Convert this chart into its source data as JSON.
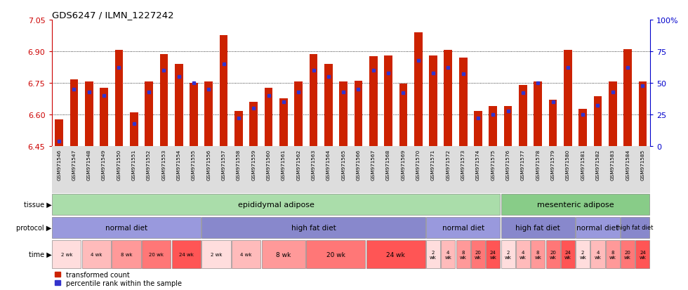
{
  "title": "GDS6247 / ILMN_1227242",
  "samples": [
    "GSM971546",
    "GSM971547",
    "GSM971548",
    "GSM971549",
    "GSM971550",
    "GSM971551",
    "GSM971552",
    "GSM971553",
    "GSM971554",
    "GSM971555",
    "GSM971556",
    "GSM971557",
    "GSM971558",
    "GSM971559",
    "GSM971560",
    "GSM971561",
    "GSM971562",
    "GSM971563",
    "GSM971564",
    "GSM971565",
    "GSM971566",
    "GSM971567",
    "GSM971568",
    "GSM971569",
    "GSM971570",
    "GSM971571",
    "GSM971572",
    "GSM971573",
    "GSM971574",
    "GSM971575",
    "GSM971576",
    "GSM971577",
    "GSM971578",
    "GSM971579",
    "GSM971580",
    "GSM971581",
    "GSM971582",
    "GSM971583",
    "GSM971584",
    "GSM971585"
  ],
  "bar_values": [
    6.575,
    6.765,
    6.755,
    6.725,
    6.905,
    6.61,
    6.755,
    6.885,
    6.84,
    6.75,
    6.755,
    6.975,
    6.615,
    6.66,
    6.725,
    6.675,
    6.755,
    6.885,
    6.84,
    6.755,
    6.76,
    6.875,
    6.88,
    6.745,
    6.99,
    6.88,
    6.905,
    6.87,
    6.615,
    6.64,
    6.64,
    6.74,
    6.755,
    6.67,
    6.905,
    6.625,
    6.685,
    6.755,
    6.91,
    6.755
  ],
  "percentile_values": [
    4,
    45,
    43,
    40,
    62,
    18,
    43,
    60,
    55,
    50,
    45,
    65,
    22,
    30,
    40,
    35,
    43,
    60,
    55,
    43,
    45,
    60,
    58,
    42,
    68,
    58,
    62,
    57,
    22,
    25,
    28,
    42,
    50,
    35,
    62,
    25,
    32,
    43,
    62,
    48
  ],
  "y_min": 6.45,
  "y_max": 7.05,
  "y_ticks": [
    6.45,
    6.6,
    6.75,
    6.9,
    7.05
  ],
  "right_y_ticks": [
    0,
    25,
    50,
    75,
    100
  ],
  "right_y_labels": [
    "0",
    "25",
    "50",
    "75",
    "100%"
  ],
  "bar_color": "#CC2200",
  "blue_color": "#3333CC",
  "bar_width": 0.55,
  "tissue_groups": [
    {
      "label": "epididymal adipose",
      "start": 0,
      "end": 29,
      "color": "#AADDAA"
    },
    {
      "label": "mesenteric adipose",
      "start": 30,
      "end": 39,
      "color": "#88CC88"
    }
  ],
  "protocol_groups": [
    {
      "label": "normal diet",
      "start": 0,
      "end": 9,
      "color": "#9999DD"
    },
    {
      "label": "high fat diet",
      "start": 10,
      "end": 24,
      "color": "#8888CC"
    },
    {
      "label": "normal diet",
      "start": 25,
      "end": 29,
      "color": "#9999DD"
    },
    {
      "label": "high fat diet",
      "start": 30,
      "end": 34,
      "color": "#8888CC"
    },
    {
      "label": "normal diet",
      "start": 35,
      "end": 37,
      "color": "#9999DD"
    },
    {
      "label": "high fat diet",
      "start": 38,
      "end": 39,
      "color": "#8888CC"
    }
  ],
  "time_groups": [
    {
      "label": "2 wk",
      "start": 0,
      "end": 1,
      "color": "#FFDDDD"
    },
    {
      "label": "4 wk",
      "start": 2,
      "end": 3,
      "color": "#FFBBBB"
    },
    {
      "label": "8 wk",
      "start": 4,
      "end": 5,
      "color": "#FF9999"
    },
    {
      "label": "20 wk",
      "start": 6,
      "end": 7,
      "color": "#FF7777"
    },
    {
      "label": "24 wk",
      "start": 8,
      "end": 9,
      "color": "#FF5555"
    },
    {
      "label": "2 wk",
      "start": 10,
      "end": 11,
      "color": "#FFDDDD"
    },
    {
      "label": "4 wk",
      "start": 12,
      "end": 13,
      "color": "#FFBBBB"
    },
    {
      "label": "8 wk",
      "start": 14,
      "end": 16,
      "color": "#FF9999"
    },
    {
      "label": "20 wk",
      "start": 17,
      "end": 20,
      "color": "#FF7777"
    },
    {
      "label": "24 wk",
      "start": 21,
      "end": 24,
      "color": "#FF5555"
    },
    {
      "label": "2\nwk",
      "start": 25,
      "end": 25,
      "color": "#FFDDDD"
    },
    {
      "label": "4\nwk",
      "start": 26,
      "end": 26,
      "color": "#FFBBBB"
    },
    {
      "label": "8\nwk",
      "start": 27,
      "end": 27,
      "color": "#FF9999"
    },
    {
      "label": "20\nwk",
      "start": 28,
      "end": 28,
      "color": "#FF7777"
    },
    {
      "label": "24\nwk",
      "start": 29,
      "end": 29,
      "color": "#FF5555"
    },
    {
      "label": "2\nwk",
      "start": 30,
      "end": 30,
      "color": "#FFDDDD"
    },
    {
      "label": "4\nwk",
      "start": 31,
      "end": 31,
      "color": "#FFBBBB"
    },
    {
      "label": "8\nwk",
      "start": 32,
      "end": 32,
      "color": "#FF9999"
    },
    {
      "label": "20\nwk",
      "start": 33,
      "end": 33,
      "color": "#FF7777"
    },
    {
      "label": "24\nwk",
      "start": 34,
      "end": 34,
      "color": "#FF5555"
    },
    {
      "label": "2\nwk",
      "start": 35,
      "end": 35,
      "color": "#FFDDDD"
    },
    {
      "label": "4\nwk",
      "start": 36,
      "end": 36,
      "color": "#FFBBBB"
    },
    {
      "label": "8\nwk",
      "start": 37,
      "end": 37,
      "color": "#FF9999"
    },
    {
      "label": "20\nwk",
      "start": 38,
      "end": 38,
      "color": "#FF7777"
    },
    {
      "label": "24\nwk",
      "start": 39,
      "end": 39,
      "color": "#FF5555"
    }
  ],
  "bg_color": "#FFFFFF",
  "axis_color": "#CC0000",
  "right_axis_color": "#0000CC",
  "xtick_bg": "#DDDDDD"
}
